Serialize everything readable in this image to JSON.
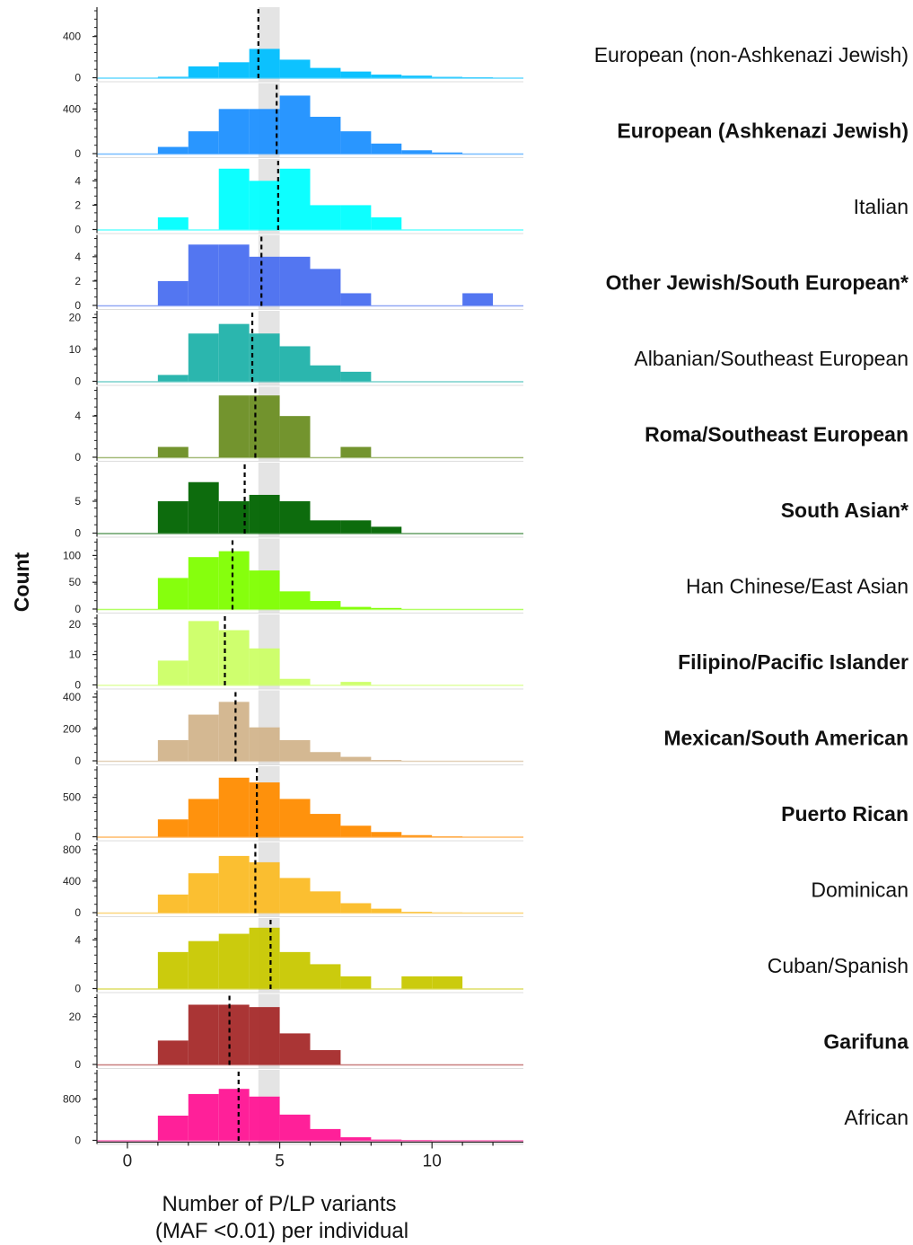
{
  "chart_data": {
    "type": "bar",
    "subtype": "stacked histograms",
    "ylabel": "Count",
    "xlabel_lines": [
      "Number of P/LP variants",
      "(MAF <0.01) per individual"
    ],
    "xlim": [
      -1,
      13
    ],
    "x_ticks": [
      0,
      5,
      10
    ],
    "bin_starts": [
      -1,
      0,
      1,
      2,
      3,
      4,
      5,
      6,
      7,
      8,
      9,
      10,
      11,
      12
    ],
    "shaded_band": [
      4.3,
      5.0
    ],
    "shaded_color": "#e4e4e4",
    "panels": [
      {
        "label": "European (non-Ashkenazi Jewish)",
        "bold": false,
        "color": "#00bfff",
        "ylim": [
          0,
          650
        ],
        "yticks": [
          0,
          400
        ],
        "mean": 4.3,
        "counts": [
          0,
          0,
          9,
          110,
          150,
          280,
          175,
          95,
          60,
          30,
          20,
          8,
          4,
          0
        ]
      },
      {
        "label": "European (Ashkenazi Jewish)",
        "bold": true,
        "color": "#1e90ff",
        "ylim": [
          0,
          600
        ],
        "yticks": [
          0,
          400
        ],
        "mean": 4.9,
        "counts": [
          0,
          0,
          60,
          200,
          400,
          400,
          520,
          330,
          200,
          90,
          30,
          10,
          0,
          0
        ]
      },
      {
        "label": "Italian",
        "bold": false,
        "color": "#00ffff",
        "ylim": [
          0,
          5.5
        ],
        "yticks": [
          0,
          2,
          4
        ],
        "mean": 4.95,
        "counts": [
          0,
          0,
          1,
          0,
          5,
          4,
          5,
          2,
          2,
          1,
          0,
          0,
          0,
          0
        ]
      },
      {
        "label": "Other Jewish/South European*",
        "bold": true,
        "color": "#4a6ff0",
        "ylim": [
          0,
          5.5
        ],
        "yticks": [
          0,
          2,
          4
        ],
        "mean": 4.4,
        "counts": [
          0,
          0,
          2,
          5,
          5,
          4,
          4,
          3,
          1,
          0,
          0,
          0,
          1,
          0
        ]
      },
      {
        "label": "Albanian/Southeast European",
        "bold": false,
        "color": "#20b2aa",
        "ylim": [
          0,
          21
        ],
        "yticks": [
          0,
          10,
          20
        ],
        "mean": 4.1,
        "counts": [
          0,
          0,
          2,
          15,
          18,
          15,
          11,
          5,
          3,
          0,
          0,
          0,
          0,
          0
        ]
      },
      {
        "label": "Roma/Southeast European",
        "bold": true,
        "color": "#6b8e23",
        "ylim": [
          0,
          6.5
        ],
        "yticks": [
          0,
          4
        ],
        "mean": 4.2,
        "counts": [
          0,
          0,
          1,
          0,
          6,
          6,
          4,
          0,
          1,
          0,
          0,
          0,
          0,
          0
        ]
      },
      {
        "label": "South Asian*",
        "bold": true,
        "color": "#006400",
        "ylim": [
          0,
          10.5
        ],
        "yticks": [
          0,
          5
        ],
        "mean": 3.85,
        "counts": [
          0,
          0,
          5,
          8,
          5,
          6,
          5,
          2,
          2,
          1,
          0,
          0,
          0,
          0
        ]
      },
      {
        "label": "Han Chinese/East Asian",
        "bold": false,
        "color": "#7fff00",
        "ylim": [
          0,
          125
        ],
        "yticks": [
          0,
          50,
          100
        ],
        "mean": 3.45,
        "counts": [
          0,
          0,
          58,
          97,
          108,
          72,
          33,
          15,
          4,
          2,
          0,
          0,
          0,
          0
        ]
      },
      {
        "label": "Filipino/Pacific Islander",
        "bold": true,
        "color": "#ccff66",
        "ylim": [
          0,
          22
        ],
        "yticks": [
          0,
          10,
          20
        ],
        "mean": 3.2,
        "counts": [
          0,
          0,
          8,
          21,
          18,
          12,
          2,
          0,
          1,
          0,
          0,
          0,
          0,
          0
        ]
      },
      {
        "label": "Mexican/South American",
        "bold": true,
        "color": "#d2b48c",
        "ylim": [
          0,
          420
        ],
        "yticks": [
          0,
          200,
          400
        ],
        "mean": 3.55,
        "counts": [
          0,
          0,
          130,
          290,
          370,
          210,
          130,
          55,
          25,
          5,
          0,
          0,
          0,
          0
        ]
      },
      {
        "label": "Puerto Rican",
        "bold": true,
        "color": "#ff8c00",
        "ylim": [
          0,
          850
        ],
        "yticks": [
          0,
          500
        ],
        "mean": 4.25,
        "counts": [
          0,
          0,
          220,
          480,
          750,
          690,
          480,
          290,
          140,
          60,
          20,
          5,
          0,
          0
        ]
      },
      {
        "label": "Dominican",
        "bold": false,
        "color": "#fbbc26",
        "ylim": [
          0,
          850
        ],
        "yticks": [
          0,
          400,
          800
        ],
        "mean": 4.2,
        "counts": [
          0,
          0,
          230,
          500,
          720,
          640,
          440,
          270,
          120,
          50,
          10,
          2,
          0,
          0
        ]
      },
      {
        "label": "Cuban/Spanish",
        "bold": false,
        "color": "#c8c800",
        "ylim": [
          0,
          5.5
        ],
        "yticks": [
          0,
          4
        ],
        "mean": 4.7,
        "counts": [
          0,
          0,
          3,
          3.9,
          4.5,
          5,
          3,
          2,
          1,
          0,
          1,
          1,
          0,
          0
        ]
      },
      {
        "label": "Garifuna",
        "bold": true,
        "color": "#a52a2a",
        "ylim": [
          0,
          28
        ],
        "yticks": [
          0,
          20
        ],
        "mean": 3.35,
        "counts": [
          0,
          0,
          10,
          25,
          25,
          24,
          13,
          6,
          0,
          0,
          0,
          0,
          0,
          0
        ]
      },
      {
        "label": "African",
        "bold": false,
        "color": "#ff1493",
        "ylim": [
          0,
          1300
        ],
        "yticks": [
          0,
          800
        ],
        "mean": 3.65,
        "counts": [
          0,
          0,
          480,
          900,
          1000,
          850,
          500,
          220,
          60,
          15,
          5,
          0,
          0,
          0
        ]
      }
    ]
  }
}
